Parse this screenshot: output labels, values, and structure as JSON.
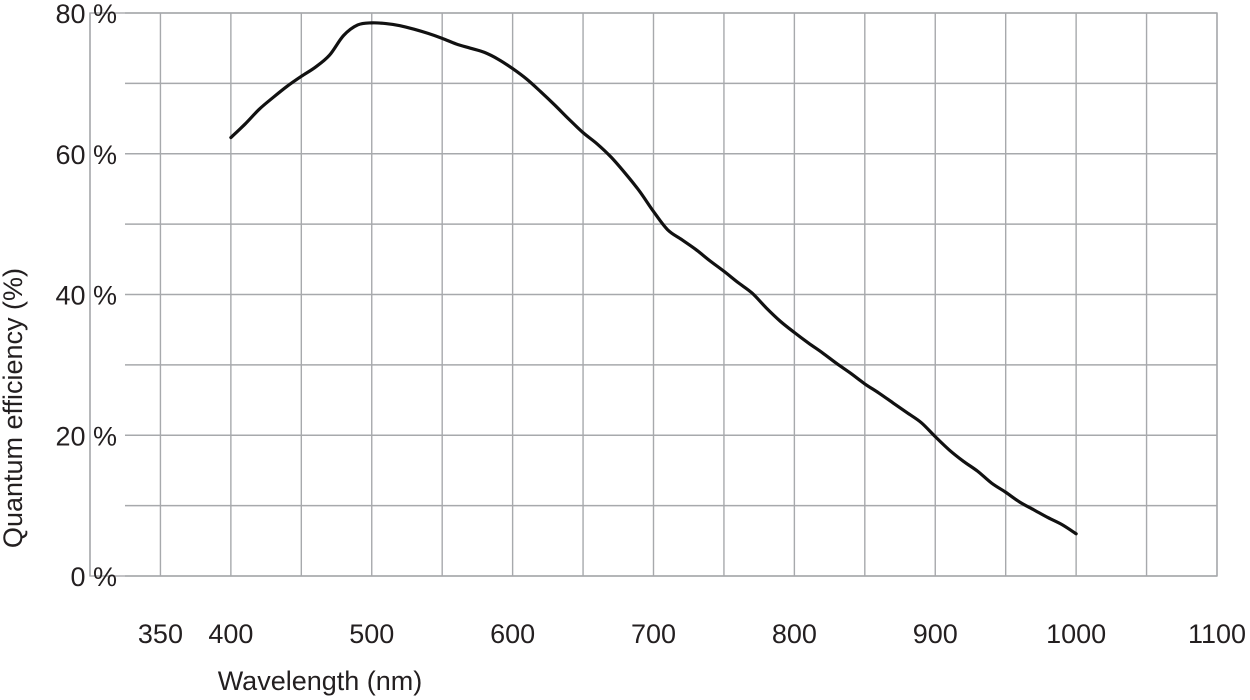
{
  "chart_data": {
    "type": "line",
    "title": "",
    "xlabel": "Wavelength (nm)",
    "ylabel": "Quantum efficiency (%)",
    "xlim": [
      300,
      1100
    ],
    "ylim": [
      0,
      80
    ],
    "x_ticks": [
      350,
      400,
      500,
      600,
      700,
      800,
      900,
      1000,
      1100
    ],
    "x_tick_labels": [
      "350",
      "400",
      "500",
      "600",
      "700",
      "800",
      "900",
      "1000",
      "1100"
    ],
    "y_ticks": [
      0,
      20,
      40,
      60,
      80
    ],
    "y_tick_labels": [
      "0 %",
      "20 %",
      "40 %",
      "60 %",
      "80 %"
    ],
    "x_gridlines": [
      300,
      350,
      400,
      450,
      500,
      550,
      600,
      650,
      700,
      750,
      800,
      850,
      900,
      950,
      1000,
      1050,
      1100
    ],
    "y_gridlines": [
      0,
      10,
      20,
      30,
      40,
      50,
      60,
      70,
      80
    ],
    "grid": true,
    "legend": "none",
    "series": [
      {
        "color": "#111111",
        "x": [
          400,
          410,
          420,
          430,
          440,
          450,
          460,
          470,
          480,
          490,
          500,
          510,
          520,
          530,
          540,
          550,
          560,
          570,
          580,
          590,
          600,
          610,
          620,
          630,
          640,
          650,
          660,
          670,
          680,
          690,
          700,
          710,
          720,
          730,
          740,
          750,
          760,
          770,
          780,
          790,
          800,
          810,
          820,
          830,
          840,
          850,
          860,
          870,
          880,
          890,
          900,
          910,
          920,
          930,
          940,
          950,
          960,
          970,
          980,
          990,
          1000
        ],
        "y": [
          62.3,
          64.2,
          66.3,
          68.0,
          69.6,
          71.0,
          72.3,
          74.0,
          76.8,
          78.3,
          78.6,
          78.5,
          78.2,
          77.7,
          77.1,
          76.4,
          75.6,
          75.0,
          74.4,
          73.4,
          72.1,
          70.6,
          68.8,
          66.9,
          64.9,
          63.0,
          61.4,
          59.5,
          57.2,
          54.7,
          51.8,
          49.2,
          47.8,
          46.4,
          44.8,
          43.3,
          41.7,
          40.2,
          38.1,
          36.2,
          34.6,
          33.1,
          31.7,
          30.2,
          28.8,
          27.3,
          26.0,
          24.6,
          23.2,
          21.8,
          19.8,
          17.9,
          16.3,
          14.9,
          13.2,
          11.9,
          10.5,
          9.4,
          8.3,
          7.3,
          6.0
        ]
      }
    ]
  }
}
